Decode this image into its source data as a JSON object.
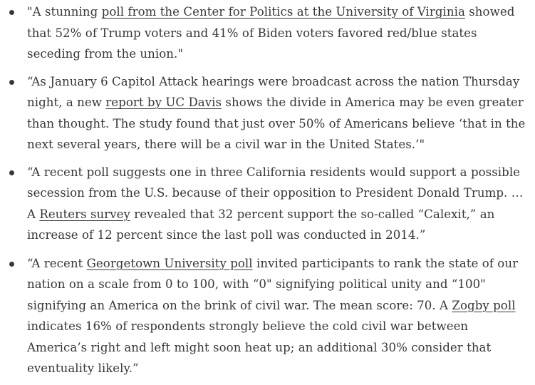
{
  "quotes": [
    {
      "t1": "\"A stunning ",
      "link1": "poll from the Center for Politics at the University of Virginia",
      "t2": " showed that 52% of Trump voters and 41% of Biden voters favored red/blue states seceding from the union.\""
    },
    {
      "t1": "“As January 6 Capitol Attack hearings were broadcast across the nation Thursday night, a new ",
      "link1": "report by UC Davis",
      "t2": " shows the divide in America may be even greater than thought. The study found that just over 50% of Americans believe ‘that in the next several years, there will be a civil war in the United States.’\""
    },
    {
      "t1": "“A recent poll suggests one in three California residents would support a possible secession from the U.S. because of their opposition to President Donald Trump. …A ",
      "link1": "Reuters survey",
      "t2": " revealed that 32 percent support the so-called “Calexit,” an increase of 12 percent since the last poll was conducted in 2014.”"
    },
    {
      "t1": "“A recent ",
      "link1": "Georgetown University poll",
      "t2": " invited participants to rank the state of our nation on a scale from 0 to 100, with “0\" signifying political unity and “100\" signifying an America on the brink of civil war. The mean score: 70. A ",
      "link2": "Zogby poll",
      "t3": " indicates 16% of respondents strongly believe the cold civil war between America’s right and left might soon heat up; an additional 30% consider that eventuality likely.”"
    }
  ]
}
